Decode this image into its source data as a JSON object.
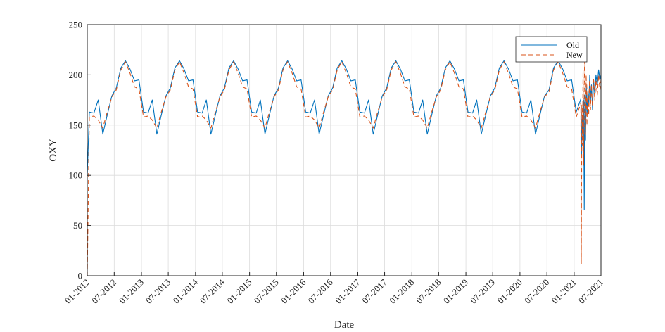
{
  "chart_data": {
    "type": "line",
    "title": "",
    "xlabel": "Date",
    "ylabel": "OXY",
    "ylim": [
      0,
      250
    ],
    "yticks": [
      0,
      50,
      100,
      150,
      200,
      250
    ],
    "xlim": [
      "2012-01-01",
      "2021-07-01"
    ],
    "xticks": [
      "01-2012",
      "07-2012",
      "01-2013",
      "07-2013",
      "01-2014",
      "07-2014",
      "01-2015",
      "07-2015",
      "01-2016",
      "07-2016",
      "01-2017",
      "07-2017",
      "01-2018",
      "07-2018",
      "01-2019",
      "07-2019",
      "01-2020",
      "07-2020",
      "01-2021",
      "07-2021"
    ],
    "grid": true,
    "legend_position": "top-right",
    "series": [
      {
        "name": "Old",
        "color": "#0072BD",
        "dash": "solid",
        "tail": [
          [
            "2021-02-15",
            176
          ],
          [
            "2021-02-20",
            120
          ],
          [
            "2021-02-25",
            160
          ],
          [
            "2021-03-02",
            135
          ],
          [
            "2021-03-06",
            175
          ],
          [
            "2021-03-10",
            66
          ],
          [
            "2021-03-14",
            180
          ],
          [
            "2021-03-19",
            135
          ],
          [
            "2021-03-24",
            190
          ],
          [
            "2021-03-29",
            160
          ],
          [
            "2021-04-04",
            185
          ],
          [
            "2021-04-10",
            170
          ],
          [
            "2021-04-16",
            200
          ],
          [
            "2021-04-22",
            175
          ],
          [
            "2021-04-28",
            190
          ],
          [
            "2021-05-05",
            165
          ],
          [
            "2021-05-12",
            195
          ],
          [
            "2021-05-20",
            180
          ],
          [
            "2021-05-28",
            200
          ],
          [
            "2021-06-06",
            190
          ],
          [
            "2021-06-15",
            205
          ],
          [
            "2021-06-24",
            195
          ],
          [
            "2021-07-01",
            200
          ]
        ]
      },
      {
        "name": "New",
        "color": "#D95319",
        "dash": "dashed",
        "tail": [
          [
            "2021-02-15",
            172
          ],
          [
            "2021-02-18",
            12
          ],
          [
            "2021-02-22",
            170
          ],
          [
            "2021-02-26",
            130
          ],
          [
            "2021-03-02",
            205
          ],
          [
            "2021-03-06",
            110
          ],
          [
            "2021-03-10",
            190
          ],
          [
            "2021-03-14",
            225
          ],
          [
            "2021-03-18",
            140
          ],
          [
            "2021-03-23",
            200
          ],
          [
            "2021-03-28",
            150
          ],
          [
            "2021-04-03",
            190
          ],
          [
            "2021-04-09",
            160
          ],
          [
            "2021-04-15",
            195
          ],
          [
            "2021-04-21",
            165
          ],
          [
            "2021-04-27",
            190
          ],
          [
            "2021-05-04",
            170
          ],
          [
            "2021-05-12",
            195
          ],
          [
            "2021-05-20",
            175
          ],
          [
            "2021-05-28",
            195
          ],
          [
            "2021-06-06",
            180
          ],
          [
            "2021-06-15",
            200
          ],
          [
            "2021-06-24",
            185
          ],
          [
            "2021-07-01",
            195
          ]
        ]
      }
    ]
  }
}
